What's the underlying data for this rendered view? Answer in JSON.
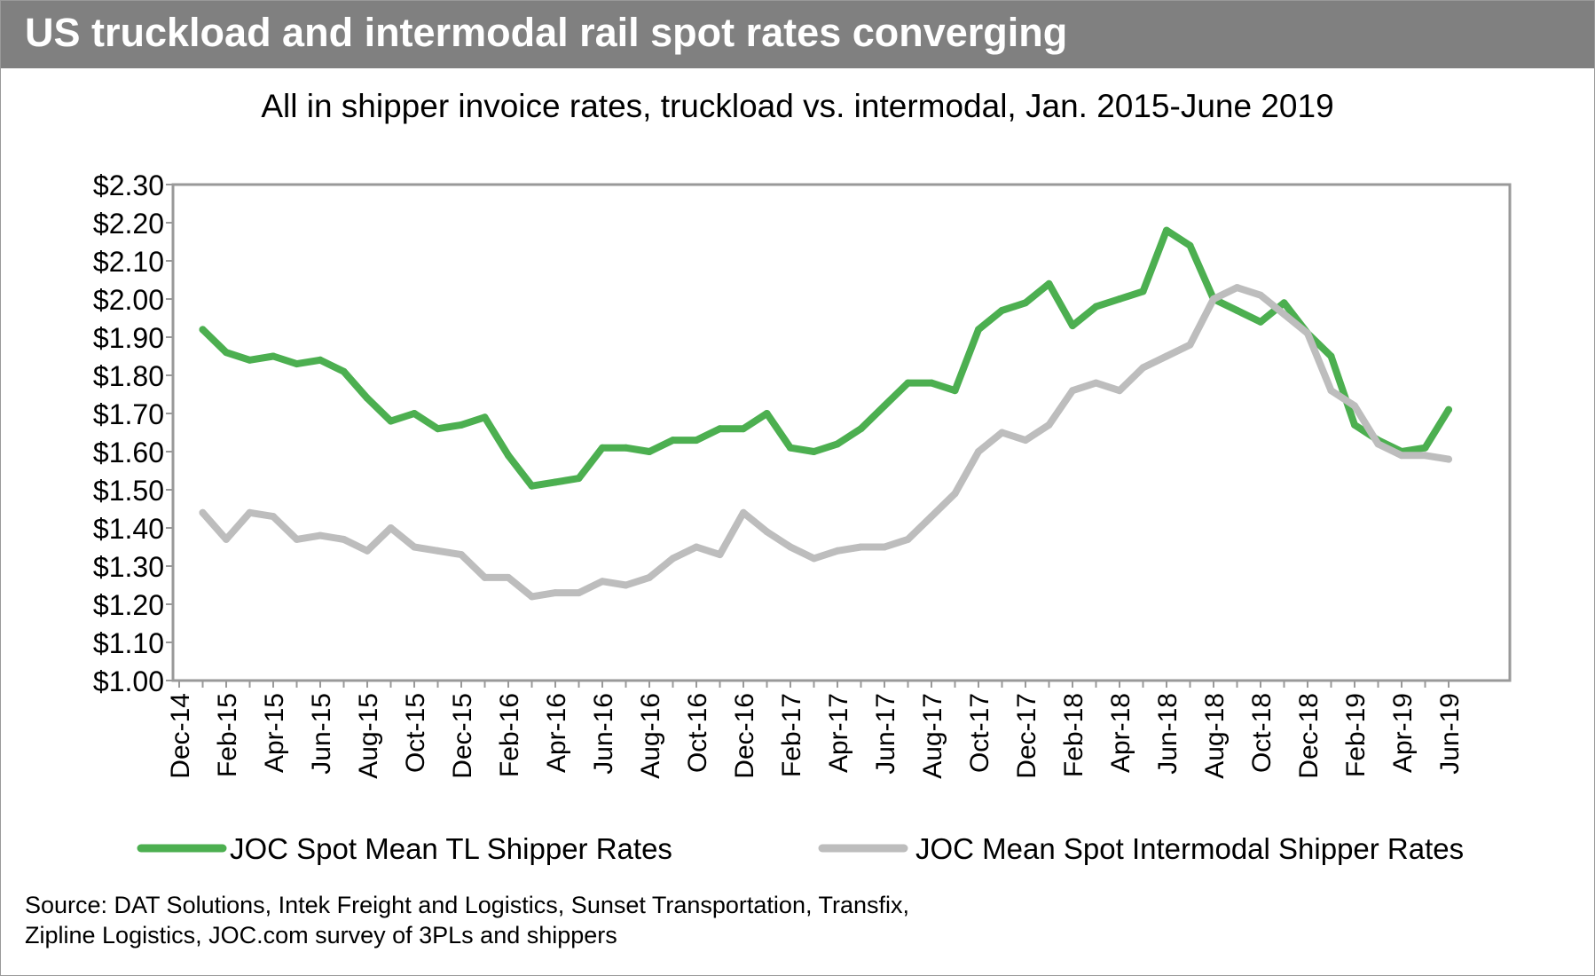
{
  "header": {
    "title": "US truckload and intermodal rail spot rates converging"
  },
  "source_lines": [
    "Source: DAT Solutions, Intek Freight and Logistics, Sunset Transportation, Transfix,",
    "Zipline Logistics, JOC.com survey of 3PLs and shippers"
  ],
  "colors": {
    "title_bar": "#808080",
    "tl": "#4caf50",
    "intermodal": "#bdbdbd",
    "axis": "#999999"
  },
  "chart_data": {
    "type": "line",
    "title": "",
    "subtitle": "All in shipper invoice rates, truckload vs. intermodal, Jan. 2015-June 2019",
    "xlabel": "",
    "ylabel": "",
    "ylim": [
      1.0,
      2.3
    ],
    "y_ticks": [
      "$1.00",
      "$1.10",
      "$1.20",
      "$1.30",
      "$1.40",
      "$1.50",
      "$1.60",
      "$1.70",
      "$1.80",
      "$1.90",
      "$2.00",
      "$2.10",
      "$2.20",
      "$2.30"
    ],
    "x_tick_labels": [
      "Dec-14",
      "Feb-15",
      "Apr-15",
      "Jun-15",
      "Aug-15",
      "Oct-15",
      "Dec-15",
      "Feb-16",
      "Apr-16",
      "Jun-16",
      "Aug-16",
      "Oct-16",
      "Dec-16",
      "Feb-17",
      "Apr-17",
      "Jun-17",
      "Aug-17",
      "Oct-17",
      "Dec-17",
      "Feb-18",
      "Apr-18",
      "Jun-18",
      "Aug-18",
      "Oct-18",
      "Dec-18",
      "Feb-19",
      "Apr-19",
      "Jun-19"
    ],
    "x": [
      "Jan-15",
      "Feb-15",
      "Mar-15",
      "Apr-15",
      "May-15",
      "Jun-15",
      "Jul-15",
      "Aug-15",
      "Sep-15",
      "Oct-15",
      "Nov-15",
      "Dec-15",
      "Jan-16",
      "Feb-16",
      "Mar-16",
      "Apr-16",
      "May-16",
      "Jun-16",
      "Jul-16",
      "Aug-16",
      "Sep-16",
      "Oct-16",
      "Nov-16",
      "Dec-16",
      "Jan-17",
      "Feb-17",
      "Mar-17",
      "Apr-17",
      "May-17",
      "Jun-17",
      "Jul-17",
      "Aug-17",
      "Sep-17",
      "Oct-17",
      "Nov-17",
      "Dec-17",
      "Jan-18",
      "Feb-18",
      "Mar-18",
      "Apr-18",
      "May-18",
      "Jun-18",
      "Jul-18",
      "Aug-18",
      "Sep-18",
      "Oct-18",
      "Nov-18",
      "Dec-18",
      "Jan-19",
      "Feb-19",
      "Mar-19",
      "Apr-19",
      "May-19",
      "Jun-19"
    ],
    "grid": false,
    "legend_position": "bottom",
    "series": [
      {
        "name": "JOC Spot Mean TL Shipper Rates",
        "color": "#4caf50",
        "values": [
          1.92,
          1.86,
          1.84,
          1.85,
          1.83,
          1.84,
          1.81,
          1.74,
          1.68,
          1.7,
          1.66,
          1.67,
          1.69,
          1.59,
          1.51,
          1.52,
          1.53,
          1.61,
          1.61,
          1.6,
          1.63,
          1.63,
          1.66,
          1.66,
          1.7,
          1.61,
          1.6,
          1.62,
          1.66,
          1.72,
          1.78,
          1.78,
          1.76,
          1.92,
          1.97,
          1.99,
          2.04,
          1.93,
          1.98,
          2.0,
          2.02,
          2.18,
          2.14,
          2.0,
          1.97,
          1.94,
          1.99,
          1.91,
          1.85,
          1.67,
          1.63,
          1.6,
          1.61,
          1.71
        ]
      },
      {
        "name": "JOC Mean Spot Intermodal Shipper Rates",
        "color": "#bdbdbd",
        "values": [
          1.44,
          1.37,
          1.44,
          1.43,
          1.37,
          1.38,
          1.37,
          1.34,
          1.4,
          1.35,
          1.34,
          1.33,
          1.27,
          1.27,
          1.22,
          1.23,
          1.23,
          1.26,
          1.25,
          1.27,
          1.32,
          1.35,
          1.33,
          1.44,
          1.39,
          1.35,
          1.32,
          1.34,
          1.35,
          1.35,
          1.37,
          1.43,
          1.49,
          1.6,
          1.65,
          1.63,
          1.67,
          1.76,
          1.78,
          1.76,
          1.82,
          1.85,
          1.88,
          2.0,
          2.03,
          2.01,
          1.96,
          1.91,
          1.76,
          1.72,
          1.62,
          1.59,
          1.59,
          1.58
        ]
      }
    ]
  }
}
